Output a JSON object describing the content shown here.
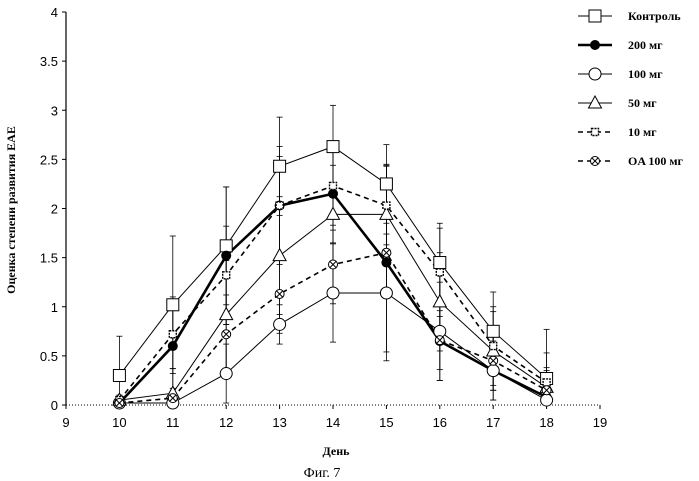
{
  "chart_data": {
    "type": "line",
    "title": "",
    "xlabel": "День",
    "ylabel": "Оценка степени развития EAE",
    "caption": "Фиг. 7",
    "xlim": [
      9,
      19
    ],
    "ylim": [
      0,
      4
    ],
    "xticks": [
      "9",
      "10",
      "11",
      "12",
      "13",
      "14",
      "15",
      "16",
      "17",
      "18",
      "19"
    ],
    "yticks": [
      "0",
      "0.5",
      "1",
      "1.5",
      "2",
      "2.5",
      "3",
      "3.5",
      "4"
    ],
    "x": [
      10,
      11,
      12,
      13,
      14,
      15,
      16,
      17,
      18
    ],
    "grid": false,
    "legend_position": "right",
    "series": [
      {
        "name": "Контроль",
        "marker": "open-square",
        "line": "solid-thin",
        "values": [
          0.3,
          1.02,
          1.62,
          2.43,
          2.63,
          2.25,
          1.45,
          0.75,
          0.27
        ],
        "errors": [
          0.4,
          0.7,
          0.6,
          0.5,
          0.42,
          0.4,
          0.4,
          0.4,
          0.5
        ]
      },
      {
        "name": "200 мг",
        "marker": "filled-circle",
        "line": "solid-thick",
        "values": [
          0.02,
          0.6,
          1.52,
          2.03,
          2.15,
          1.45,
          0.65,
          0.35,
          0.08
        ],
        "errors": [
          0.05,
          0.5,
          0.7,
          0.6,
          0.5,
          1.0,
          0.4,
          0.3,
          0.1
        ]
      },
      {
        "name": "100 мг",
        "marker": "open-circle",
        "line": "solid-thin",
        "values": [
          0.02,
          0.02,
          0.32,
          0.82,
          1.14,
          1.14,
          0.75,
          0.35,
          0.05
        ],
        "errors": [
          0.02,
          0.05,
          0.3,
          0.2,
          0.5,
          0.6,
          0.5,
          0.3,
          0.05
        ]
      },
      {
        "name": "50 мг",
        "marker": "open-triangle",
        "line": "solid-thin",
        "values": [
          0.05,
          0.12,
          0.92,
          1.52,
          1.94,
          1.94,
          1.05,
          0.55,
          0.18
        ],
        "errors": [
          0.05,
          0.25,
          0.55,
          0.6,
          0.5,
          0.5,
          0.5,
          0.4,
          0.2
        ]
      },
      {
        "name": "10 мг",
        "marker": "small-square",
        "line": "dashed",
        "values": [
          0.05,
          0.72,
          1.32,
          2.03,
          2.23,
          2.03,
          1.35,
          0.6,
          0.23
        ],
        "errors": [
          0.05,
          0.35,
          0.5,
          0.5,
          0.45,
          0.4,
          0.45,
          0.4,
          0.3
        ]
      },
      {
        "name": "OA 100 мг",
        "marker": "cross-circle",
        "line": "dashed",
        "values": [
          0.02,
          0.07,
          0.72,
          1.13,
          1.43,
          1.55,
          0.66,
          0.45,
          0.15
        ],
        "errors": [
          0.02,
          0.1,
          0.4,
          0.4,
          0.4,
          0.4,
          0.3,
          0.3,
          0.2
        ]
      }
    ]
  }
}
